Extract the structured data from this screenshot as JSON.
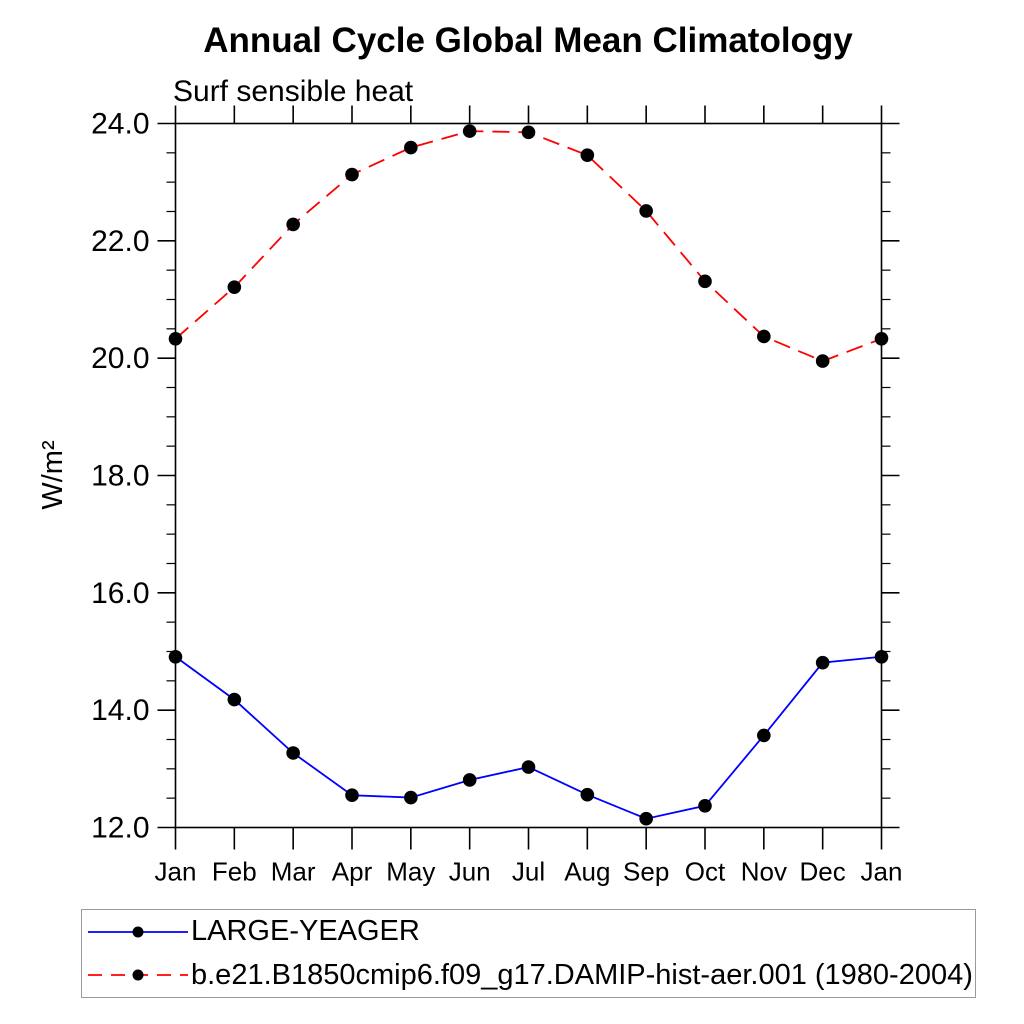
{
  "title": "Annual Cycle Global Mean Climatology",
  "subtitle": "Surf sensible heat",
  "ylabel": "W/m²",
  "legend": {
    "items": [
      {
        "label": "LARGE-YEAGER",
        "color": "#0000ff",
        "style": "solid",
        "marker": "filled-circle"
      },
      {
        "label": "b.e21.B1850cmip6.f09_g17.DAMIP-hist-aer.001 (1980-2004)",
        "color": "#ff0000",
        "style": "dashed",
        "marker": "filled-circle"
      }
    ]
  },
  "chart_data": {
    "type": "line",
    "title": "Annual Cycle Global Mean Climatology",
    "subtitle": "Surf sensible heat",
    "xlabel": "",
    "ylabel": "W/m²",
    "categories": [
      "Jan",
      "Feb",
      "Mar",
      "Apr",
      "May",
      "Jun",
      "Jul",
      "Aug",
      "Sep",
      "Oct",
      "Nov",
      "Dec",
      "Jan"
    ],
    "series": [
      {
        "name": "LARGE-YEAGER",
        "color": "#0000ff",
        "line_style": "solid",
        "marker": "filled-circle",
        "marker_color": "#000000",
        "values": [
          14.91,
          14.18,
          13.27,
          12.55,
          12.51,
          12.81,
          13.03,
          12.56,
          12.15,
          12.37,
          13.57,
          14.81,
          14.91
        ]
      },
      {
        "name": "b.e21.B1850cmip6.f09_g17.DAMIP-hist-aer.001 (1980-2004)",
        "color": "#ff0000",
        "line_style": "dashed",
        "marker": "filled-circle",
        "marker_color": "#000000",
        "values": [
          20.33,
          21.21,
          22.28,
          23.13,
          23.59,
          23.87,
          23.85,
          23.46,
          22.51,
          21.31,
          20.37,
          19.95,
          20.33
        ]
      }
    ],
    "ylim": [
      12.0,
      24.0
    ],
    "ytick_major_interval": 2.0,
    "ytick_minor_interval": 0.5,
    "ytick_labels": [
      "12.0",
      "14.0",
      "16.0",
      "18.0",
      "20.0",
      "22.0",
      "24.0"
    ],
    "grid": false,
    "legend_position": "bottom",
    "axis_frame": true
  }
}
